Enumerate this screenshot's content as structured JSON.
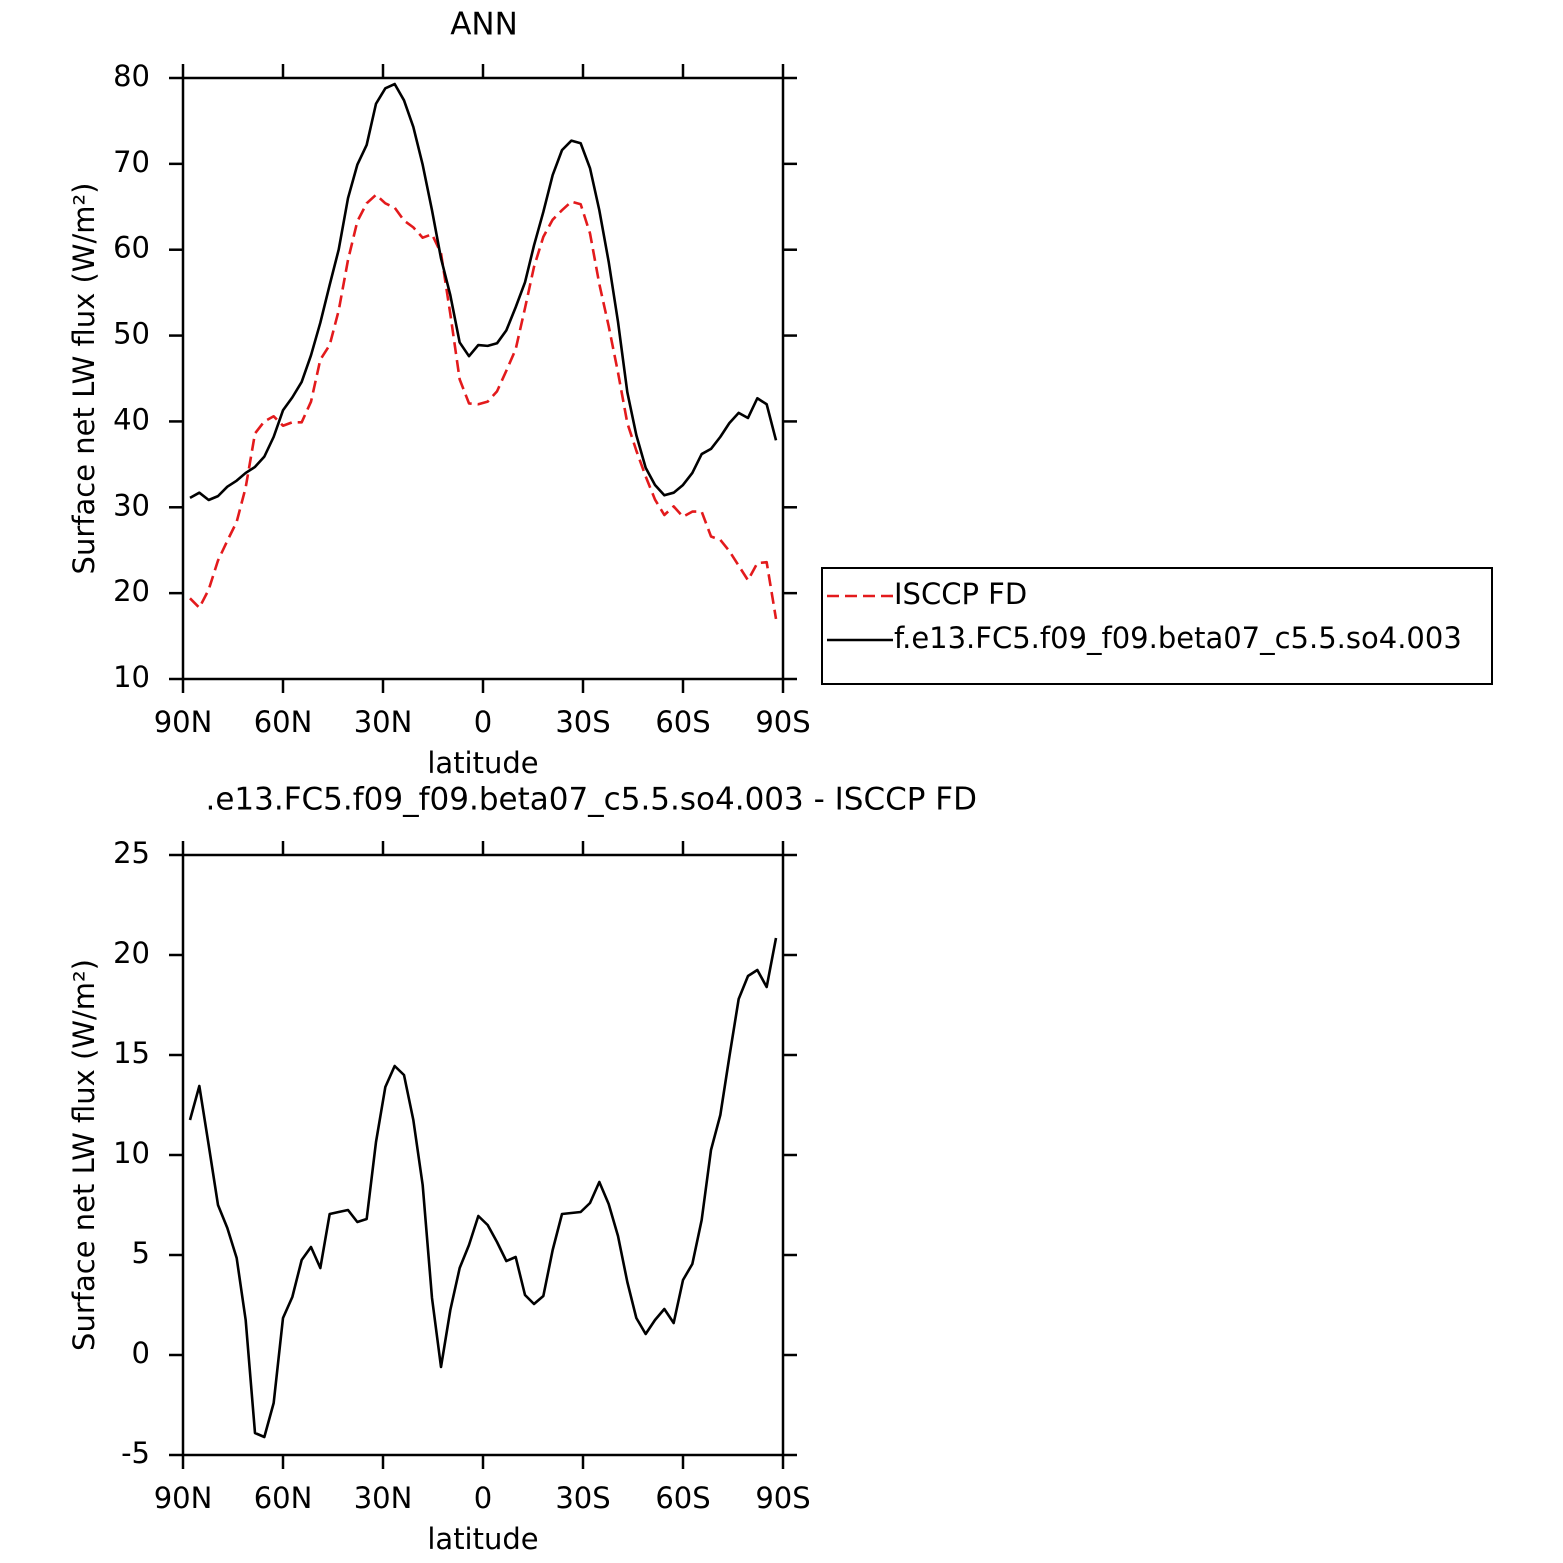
{
  "chart_data": [
    {
      "type": "line",
      "title": "ANN",
      "xlabel": "latitude",
      "ylabel": "Surface net LW flux (W/m²)",
      "x": [
        87.9,
        85.1,
        82.3,
        79.5,
        76.7,
        73.9,
        71.2,
        68.4,
        65.6,
        62.8,
        60.0,
        57.2,
        54.4,
        51.6,
        48.8,
        46.0,
        43.3,
        40.5,
        37.7,
        34.9,
        32.1,
        29.3,
        26.5,
        23.7,
        20.9,
        18.1,
        15.3,
        12.6,
        9.8,
        7.0,
        4.2,
        1.4,
        -1.4,
        -4.2,
        -7.0,
        -9.8,
        -12.6,
        -15.3,
        -18.1,
        -20.9,
        -23.7,
        -26.5,
        -29.3,
        -32.1,
        -34.9,
        -37.7,
        -40.5,
        -43.3,
        -46.0,
        -48.8,
        -51.6,
        -54.4,
        -57.2,
        -60.0,
        -62.8,
        -65.6,
        -68.4,
        -71.2,
        -73.9,
        -76.7,
        -79.5,
        -82.3,
        -85.1,
        -87.9
      ],
      "series": [
        {
          "name": "ISCCP FD",
          "color": "#e31a1c",
          "dash": true,
          "values": [
            19.4,
            18.3,
            20.4,
            23.8,
            26.1,
            28.3,
            32.3,
            38.6,
            40.0,
            40.6,
            39.5,
            39.9,
            39.9,
            42.3,
            47.2,
            48.9,
            52.9,
            58.8,
            63.3,
            65.4,
            66.4,
            65.4,
            64.9,
            63.4,
            62.6,
            61.4,
            61.8,
            59.6,
            52.5,
            44.9,
            42.1,
            42.0,
            42.3,
            43.5,
            45.9,
            48.4,
            53.2,
            58.0,
            61.5,
            63.5,
            64.6,
            65.6,
            65.3,
            61.9,
            56.0,
            51.1,
            45.7,
            39.8,
            36.6,
            33.6,
            30.9,
            29.1,
            30.1,
            28.9,
            29.5,
            29.5,
            26.6,
            26.2,
            24.9,
            23.2,
            21.5,
            23.5,
            23.6,
            17.0
          ]
        },
        {
          "name": "f.e13.FC5.f09_f09.beta07_c5.5.so4.003",
          "color": "#000000",
          "dash": false,
          "values": [
            31.1,
            31.7,
            30.85,
            31.3,
            32.4,
            33.1,
            34.0,
            34.7,
            35.9,
            38.2,
            41.3,
            42.8,
            44.6,
            47.7,
            51.5,
            55.9,
            60.0,
            66.0,
            69.9,
            72.2,
            77.0,
            78.8,
            79.3,
            77.4,
            74.3,
            69.9,
            64.6,
            59.0,
            54.7,
            49.2,
            47.6,
            48.9,
            48.8,
            49.1,
            50.6,
            53.3,
            56.2,
            60.5,
            64.4,
            68.7,
            71.6,
            72.7,
            72.4,
            69.5,
            64.6,
            58.6,
            51.6,
            43.4,
            38.4,
            34.6,
            32.6,
            31.4,
            31.7,
            32.6,
            34.0,
            36.2,
            36.8,
            38.2,
            39.8,
            41.0,
            40.4,
            42.7,
            42.0,
            37.8
          ]
        }
      ],
      "xlim": [
        90,
        -90
      ],
      "xticks": [
        {
          "value": 90,
          "label": "90N"
        },
        {
          "value": 60,
          "label": "60N"
        },
        {
          "value": 30,
          "label": "30N"
        },
        0,
        {
          "value": -30,
          "label": "30S"
        },
        {
          "value": -60,
          "label": "60S"
        },
        {
          "value": -90,
          "label": "90S"
        }
      ],
      "ylim": [
        10,
        80
      ],
      "yticks": [
        10,
        20,
        30,
        40,
        50,
        60,
        70,
        80
      ],
      "legend": "right"
    },
    {
      "type": "line",
      "title": ".e13.FC5.f09_f09.beta07_c5.5.so4.003 - ISCCP FD",
      "xlabel": "latitude",
      "ylabel": "Surface net LW flux (W/m²)",
      "x": [
        87.9,
        85.1,
        82.3,
        79.5,
        76.7,
        73.9,
        71.2,
        68.4,
        65.6,
        62.8,
        60.0,
        57.2,
        54.4,
        51.6,
        48.8,
        46.0,
        43.3,
        40.5,
        37.7,
        34.9,
        32.1,
        29.3,
        26.5,
        23.7,
        20.9,
        18.1,
        15.3,
        12.6,
        9.8,
        7.0,
        4.2,
        1.4,
        -1.4,
        -4.2,
        -7.0,
        -9.8,
        -12.6,
        -15.3,
        -18.1,
        -20.9,
        -23.7,
        -26.5,
        -29.3,
        -32.1,
        -34.9,
        -37.7,
        -40.5,
        -43.3,
        -46.0,
        -48.8,
        -51.6,
        -54.4,
        -57.2,
        -60.0,
        -62.8,
        -65.6,
        -68.4,
        -71.2,
        -73.9,
        -76.7,
        -79.5,
        -82.3,
        -85.1,
        -87.9
      ],
      "values": [
        11.75,
        13.45,
        10.5,
        7.5,
        6.35,
        4.85,
        1.75,
        -3.9,
        -4.1,
        -2.4,
        1.85,
        2.9,
        4.75,
        5.4,
        4.35,
        7.05,
        7.15,
        7.25,
        6.65,
        6.8,
        10.65,
        13.4,
        14.45,
        14.0,
        11.75,
        8.5,
        2.85,
        -0.6,
        2.25,
        4.35,
        5.5,
        6.95,
        6.5,
        5.65,
        4.7,
        4.9,
        3.0,
        2.55,
        2.95,
        5.25,
        7.05,
        7.1,
        7.15,
        7.6,
        8.65,
        7.55,
        5.95,
        3.65,
        1.85,
        1.05,
        1.75,
        2.3,
        1.6,
        3.75,
        4.55,
        6.75,
        10.25,
        12.0,
        14.9,
        17.8,
        18.95,
        19.25,
        18.4,
        20.85
      ],
      "color": "#000000",
      "xlim": [
        90,
        -90
      ],
      "xticks": [
        {
          "value": 90,
          "label": "90N"
        },
        {
          "value": 60,
          "label": "60N"
        },
        {
          "value": 30,
          "label": "30N"
        },
        0,
        {
          "value": -30,
          "label": "30S"
        },
        {
          "value": -60,
          "label": "60S"
        },
        {
          "value": -90,
          "label": "90S"
        }
      ],
      "ylim": [
        -5,
        25
      ],
      "yticks": [
        -5,
        0,
        5,
        10,
        15,
        20,
        25
      ]
    }
  ]
}
